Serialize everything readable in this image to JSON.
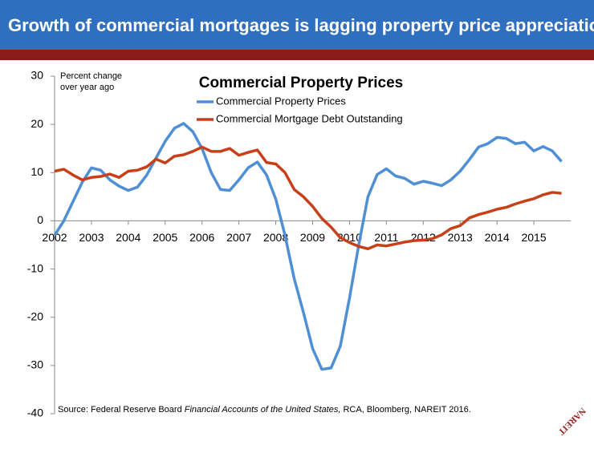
{
  "header": {
    "title": "Growth of commercial mortgages is lagging property price appreciation"
  },
  "chart_data": {
    "type": "line",
    "title": "Commercial Property Prices",
    "y_axis_label": [
      "Percent change",
      "over year ago"
    ],
    "x": [
      2002,
      2002.25,
      2002.5,
      2002.75,
      2003,
      2003.25,
      2003.5,
      2003.75,
      2004,
      2004.25,
      2004.5,
      2004.75,
      2005,
      2005.25,
      2005.5,
      2005.75,
      2006,
      2006.25,
      2006.5,
      2006.75,
      2007,
      2007.25,
      2007.5,
      2007.75,
      2008,
      2008.25,
      2008.5,
      2008.75,
      2009,
      2009.25,
      2009.5,
      2009.75,
      2010,
      2010.25,
      2010.5,
      2010.75,
      2011,
      2011.25,
      2011.5,
      2011.75,
      2012,
      2012.25,
      2012.5,
      2012.75,
      2013,
      2013.25,
      2013.5,
      2013.75,
      2014,
      2014.25,
      2014.5,
      2014.75,
      2015,
      2015.25,
      2015.5,
      2015.75
    ],
    "series": [
      {
        "name": "Commercial Property Prices",
        "color": "#4f8fd5",
        "values": [
          -3,
          0,
          4,
          8,
          11,
          10.5,
          8.5,
          7.2,
          6.3,
          7,
          9.5,
          13,
          16.5,
          19.2,
          20.2,
          18.5,
          15,
          10,
          6.5,
          6.3,
          8.5,
          11,
          12.2,
          9.5,
          4.5,
          -3,
          -12,
          -19,
          -26.5,
          -30.8,
          -30.5,
          -26,
          -16,
          -5,
          5,
          9.6,
          10.8,
          9.3,
          8.8,
          7.6,
          8.2,
          7.8,
          7.3,
          8.5,
          10.3,
          12.7,
          15.3,
          16,
          17.3,
          17.1,
          16,
          16.3,
          14.5,
          15.4,
          14.5,
          12.3
        ]
      },
      {
        "name": "Commercial Mortgage Debt Outstanding",
        "color": "#c8401a",
        "values": [
          10.3,
          10.7,
          9.5,
          8.5,
          9,
          9.2,
          9.7,
          9,
          10.3,
          10.5,
          11.2,
          12.8,
          12,
          13.4,
          13.7,
          14.4,
          15.3,
          14.4,
          14.4,
          15,
          13.6,
          14.2,
          14.7,
          12.1,
          11.8,
          10,
          6.5,
          5,
          3,
          0.5,
          -1.3,
          -3.5,
          -4.5,
          -5.3,
          -5.8,
          -5,
          -5.2,
          -4.8,
          -4.4,
          -4.1,
          -4,
          -3.7,
          -2.9,
          -1.6,
          -1,
          0.6,
          1.3,
          1.8,
          2.4,
          2.8,
          3.5,
          4.1,
          4.6,
          5.4,
          5.9,
          5.7
        ]
      }
    ],
    "xlim": [
      2002,
      2016
    ],
    "xticks": [
      2002,
      2003,
      2004,
      2005,
      2006,
      2007,
      2008,
      2009,
      2010,
      2011,
      2012,
      2013,
      2014,
      2015
    ],
    "ylim": [
      -40,
      30
    ],
    "yticks": [
      -40,
      -30,
      -20,
      -10,
      0,
      10,
      20,
      30
    ],
    "grid": false
  },
  "source": {
    "prefix": "Source: Federal Reserve Board ",
    "italic": "Financial Accounts of the United States,",
    "suffix": " RCA, Bloomberg, NAREIT 2016."
  },
  "logo": "NAREIT"
}
